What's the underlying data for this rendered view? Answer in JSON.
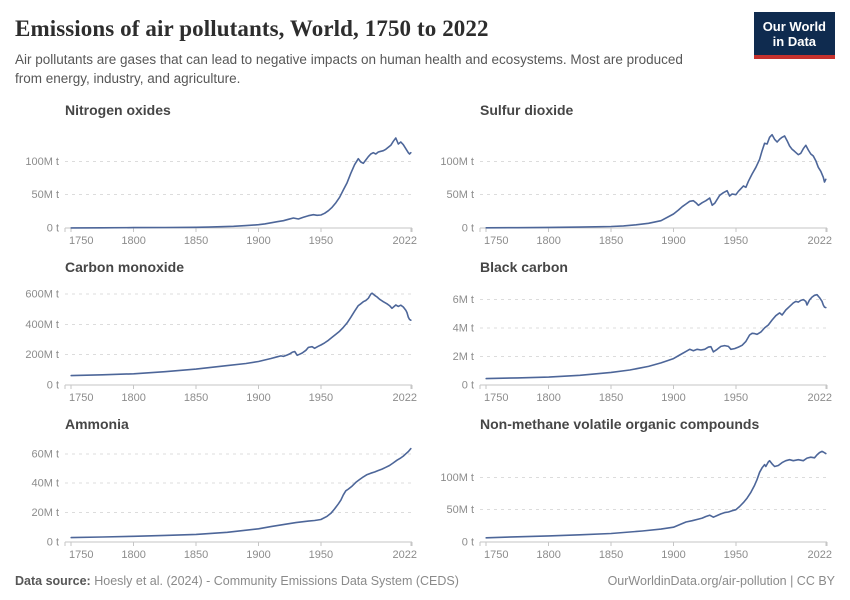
{
  "header": {
    "title": "Emissions of air pollutants, World, 1750 to 2022",
    "subtitle": "Air pollutants are gases that can lead to negative impacts on human health and ecosystems. Most are produced from energy, industry, and agriculture.",
    "logo": {
      "line1": "Our World",
      "line2": "in Data",
      "bg_color": "#0f2b4f",
      "accent_color": "#c5312d"
    }
  },
  "footer": {
    "source_label": "Data source:",
    "source_text": "Hoesly et al. (2024) - Community Emissions Data System (CEDS)",
    "right_text": "OurWorldinData.org/air-pollution | CC BY"
  },
  "style": {
    "line_color": "#4d6699",
    "grid_color": "#dcdcdc",
    "axis_color": "#c6c6c6",
    "tick_text_color": "#8c8c8c"
  },
  "chart_data": [
    {
      "type": "line",
      "title": "Nitrogen oxides",
      "unit": "million tonnes",
      "xlim": [
        1745,
        2023
      ],
      "ylim": [
        0,
        150
      ],
      "xticks": [
        {
          "v": 1750,
          "label": "1750"
        },
        {
          "v": 1800,
          "label": "1800"
        },
        {
          "v": 1850,
          "label": "1850"
        },
        {
          "v": 1900,
          "label": "1900"
        },
        {
          "v": 1950,
          "label": "1950"
        },
        {
          "v": 2022,
          "label": "2022"
        }
      ],
      "yticks": [
        {
          "v": 0,
          "label": "0 t"
        },
        {
          "v": 50,
          "label": "50M t"
        },
        {
          "v": 100,
          "label": "100M t"
        }
      ],
      "x": [
        1750,
        1775,
        1800,
        1825,
        1850,
        1860,
        1870,
        1880,
        1890,
        1900,
        1905,
        1910,
        1915,
        1920,
        1924,
        1928,
        1932,
        1936,
        1940,
        1944,
        1947,
        1950,
        1953,
        1956,
        1959,
        1962,
        1965,
        1968,
        1971,
        1974,
        1977,
        1980,
        1982,
        1984,
        1986,
        1988,
        1990,
        1992,
        1994,
        1996,
        1998,
        2000,
        2002,
        2004,
        2006,
        2008,
        2010,
        2012,
        2014,
        2016,
        2018,
        2020,
        2021,
        2022
      ],
      "values": [
        0.2,
        0.35,
        0.55,
        0.8,
        1.1,
        1.4,
        1.9,
        2.6,
        3.6,
        5,
        6.2,
        7.8,
        9.5,
        11,
        13,
        15,
        13.5,
        16,
        18.5,
        20,
        19,
        19.5,
        22,
        26,
        31,
        38,
        46,
        57,
        68,
        82,
        95,
        104,
        99,
        97,
        102,
        107,
        111,
        113,
        111,
        114,
        115,
        116,
        118,
        121,
        124,
        130,
        135,
        126,
        129,
        125,
        119,
        113,
        111,
        113
      ]
    },
    {
      "type": "line",
      "title": "Sulfur dioxide",
      "unit": "million tonnes",
      "xlim": [
        1745,
        2023
      ],
      "ylim": [
        0,
        150
      ],
      "xticks": [
        {
          "v": 1750,
          "label": "1750"
        },
        {
          "v": 1800,
          "label": "1800"
        },
        {
          "v": 1850,
          "label": "1850"
        },
        {
          "v": 1900,
          "label": "1900"
        },
        {
          "v": 1950,
          "label": "1950"
        },
        {
          "v": 2022,
          "label": "2022"
        }
      ],
      "yticks": [
        {
          "v": 0,
          "label": "0 t"
        },
        {
          "v": 50,
          "label": "50M t"
        },
        {
          "v": 100,
          "label": "100M t"
        }
      ],
      "x": [
        1750,
        1775,
        1800,
        1825,
        1850,
        1860,
        1870,
        1880,
        1890,
        1900,
        1904,
        1907,
        1910,
        1913,
        1916,
        1918,
        1920,
        1923,
        1926,
        1929,
        1931,
        1933,
        1935,
        1937,
        1940,
        1943,
        1945,
        1947,
        1950,
        1952,
        1954,
        1956,
        1958,
        1960,
        1963,
        1966,
        1969,
        1971,
        1973,
        1975,
        1977,
        1979,
        1981,
        1983,
        1985,
        1987,
        1989,
        1991,
        1993,
        1995,
        1997,
        2000,
        2002,
        2004,
        2006,
        2008,
        2010,
        2012,
        2014,
        2016,
        2018,
        2020,
        2021,
        2022
      ],
      "values": [
        0.3,
        0.5,
        0.9,
        1.4,
        2.2,
        3.2,
        4.8,
        7,
        11,
        21,
        27,
        32,
        36,
        40,
        41,
        38,
        34,
        38,
        41,
        45,
        34,
        37,
        43,
        49,
        53,
        56,
        48,
        51,
        50,
        55,
        59,
        63,
        61,
        70,
        81,
        91,
        103,
        116,
        127,
        126,
        136,
        140,
        133,
        129,
        133,
        136,
        138,
        131,
        123,
        118,
        115,
        110,
        112,
        119,
        124,
        117,
        111,
        108,
        101,
        91,
        85,
        76,
        69,
        73
      ]
    },
    {
      "type": "line",
      "title": "Carbon monoxide",
      "unit": "million tonnes",
      "xlim": [
        1745,
        2023
      ],
      "ylim": [
        0,
        660
      ],
      "xticks": [
        {
          "v": 1750,
          "label": "1750"
        },
        {
          "v": 1800,
          "label": "1800"
        },
        {
          "v": 1850,
          "label": "1850"
        },
        {
          "v": 1900,
          "label": "1900"
        },
        {
          "v": 1950,
          "label": "1950"
        },
        {
          "v": 2022,
          "label": "2022"
        }
      ],
      "yticks": [
        {
          "v": 0,
          "label": "0 t"
        },
        {
          "v": 200,
          "label": "200M t"
        },
        {
          "v": 400,
          "label": "400M t"
        },
        {
          "v": 600,
          "label": "600M t"
        }
      ],
      "x": [
        1750,
        1775,
        1800,
        1825,
        1850,
        1875,
        1890,
        1900,
        1905,
        1910,
        1915,
        1918,
        1920,
        1923,
        1925,
        1927,
        1929,
        1931,
        1933,
        1935,
        1938,
        1940,
        1943,
        1945,
        1948,
        1950,
        1953,
        1956,
        1959,
        1962,
        1965,
        1968,
        1971,
        1974,
        1977,
        1980,
        1982,
        1984,
        1986,
        1988,
        1990,
        1991,
        1993,
        1995,
        1997,
        2000,
        2003,
        2005,
        2007,
        2009,
        2010,
        2012,
        2014,
        2016,
        2018,
        2019,
        2020,
        2021,
        2022
      ],
      "values": [
        62,
        67,
        74,
        88,
        105,
        128,
        142,
        155,
        165,
        175,
        186,
        192,
        189,
        198,
        205,
        216,
        221,
        196,
        203,
        211,
        229,
        248,
        253,
        242,
        256,
        264,
        278,
        295,
        315,
        335,
        355,
        380,
        410,
        447,
        487,
        524,
        536,
        550,
        558,
        572,
        600,
        606,
        592,
        581,
        566,
        550,
        536,
        524,
        506,
        521,
        528,
        519,
        527,
        515,
        494,
        478,
        448,
        433,
        428
      ]
    },
    {
      "type": "line",
      "title": "Black carbon",
      "unit": "million tonnes",
      "xlim": [
        1745,
        2023
      ],
      "ylim": [
        0,
        7
      ],
      "xticks": [
        {
          "v": 1750,
          "label": "1750"
        },
        {
          "v": 1800,
          "label": "1800"
        },
        {
          "v": 1850,
          "label": "1850"
        },
        {
          "v": 1900,
          "label": "1900"
        },
        {
          "v": 1950,
          "label": "1950"
        },
        {
          "v": 2022,
          "label": "2022"
        }
      ],
      "yticks": [
        {
          "v": 0,
          "label": "0 t"
        },
        {
          "v": 2,
          "label": "2M t"
        },
        {
          "v": 4,
          "label": "4M t"
        },
        {
          "v": 6,
          "label": "6M t"
        }
      ],
      "x": [
        1750,
        1775,
        1800,
        1825,
        1850,
        1865,
        1880,
        1890,
        1900,
        1905,
        1910,
        1913,
        1916,
        1919,
        1922,
        1925,
        1928,
        1930,
        1932,
        1935,
        1938,
        1941,
        1944,
        1946,
        1949,
        1952,
        1955,
        1958,
        1961,
        1963,
        1965,
        1967,
        1970,
        1973,
        1976,
        1979,
        1982,
        1985,
        1987,
        1990,
        1993,
        1996,
        1998,
        2000,
        2002,
        2004,
        2006,
        2007,
        2009,
        2011,
        2013,
        2015,
        2017,
        2019,
        2020,
        2021,
        2022
      ],
      "values": [
        0.45,
        0.5,
        0.55,
        0.68,
        0.88,
        1.05,
        1.3,
        1.55,
        1.85,
        2.1,
        2.35,
        2.5,
        2.4,
        2.5,
        2.45,
        2.5,
        2.65,
        2.68,
        2.32,
        2.5,
        2.7,
        2.76,
        2.7,
        2.5,
        2.55,
        2.65,
        2.78,
        3.05,
        3.5,
        3.62,
        3.6,
        3.55,
        3.7,
        4.0,
        4.2,
        4.55,
        4.85,
        5.05,
        4.9,
        5.25,
        5.5,
        5.75,
        5.85,
        5.8,
        5.92,
        5.98,
        5.85,
        5.6,
        5.95,
        6.15,
        6.28,
        6.32,
        6.12,
        5.86,
        5.6,
        5.45,
        5.42
      ]
    },
    {
      "type": "line",
      "title": "Ammonia",
      "unit": "million tonnes",
      "xlim": [
        1745,
        2023
      ],
      "ylim": [
        0,
        68
      ],
      "xticks": [
        {
          "v": 1750,
          "label": "1750"
        },
        {
          "v": 1800,
          "label": "1800"
        },
        {
          "v": 1850,
          "label": "1850"
        },
        {
          "v": 1900,
          "label": "1900"
        },
        {
          "v": 1950,
          "label": "1950"
        },
        {
          "v": 2022,
          "label": "2022"
        }
      ],
      "yticks": [
        {
          "v": 0,
          "label": "0 t"
        },
        {
          "v": 20,
          "label": "20M t"
        },
        {
          "v": 40,
          "label": "40M t"
        },
        {
          "v": 60,
          "label": "60M t"
        }
      ],
      "x": [
        1750,
        1775,
        1800,
        1825,
        1850,
        1875,
        1900,
        1910,
        1920,
        1930,
        1940,
        1945,
        1950,
        1955,
        1958,
        1961,
        1964,
        1966,
        1968,
        1970,
        1972,
        1975,
        1978,
        1981,
        1984,
        1987,
        1990,
        1993,
        1996,
        1999,
        2002,
        2005,
        2008,
        2011,
        2014,
        2016,
        2018,
        2020,
        2022
      ],
      "values": [
        3.0,
        3.4,
        3.9,
        4.5,
        5.2,
        6.6,
        9.0,
        10.5,
        11.8,
        13.2,
        14.2,
        14.6,
        15.3,
        17.5,
        19.5,
        22.5,
        26,
        28.5,
        32,
        34.8,
        36,
        38,
        40.5,
        42.5,
        44.3,
        45.8,
        46.8,
        47.6,
        48.6,
        49.6,
        50.8,
        52,
        53.8,
        55.6,
        57.2,
        58.4,
        60,
        61.5,
        63.5
      ]
    },
    {
      "type": "line",
      "title": "Non-methane volatile organic compounds",
      "unit": "million tonnes",
      "xlim": [
        1745,
        2023
      ],
      "ylim": [
        0,
        155
      ],
      "xticks": [
        {
          "v": 1750,
          "label": "1750"
        },
        {
          "v": 1800,
          "label": "1800"
        },
        {
          "v": 1850,
          "label": "1850"
        },
        {
          "v": 1900,
          "label": "1900"
        },
        {
          "v": 1950,
          "label": "1950"
        },
        {
          "v": 2022,
          "label": "2022"
        }
      ],
      "yticks": [
        {
          "v": 0,
          "label": "0 t"
        },
        {
          "v": 50,
          "label": "50M t"
        },
        {
          "v": 100,
          "label": "100M t"
        }
      ],
      "x": [
        1750,
        1775,
        1800,
        1825,
        1850,
        1875,
        1890,
        1900,
        1905,
        1910,
        1915,
        1920,
        1923,
        1926,
        1929,
        1932,
        1935,
        1938,
        1941,
        1944,
        1947,
        1950,
        1953,
        1956,
        1959,
        1962,
        1965,
        1967,
        1969,
        1971,
        1973,
        1974,
        1976,
        1977,
        1979,
        1981,
        1984,
        1987,
        1990,
        1993,
        1996,
        2000,
        2004,
        2007,
        2010,
        2013,
        2015,
        2017,
        2019,
        2020,
        2022
      ],
      "values": [
        6.5,
        8,
        9.5,
        11.2,
        13.2,
        17,
        20,
        23,
        27,
        31,
        33,
        35.5,
        37,
        39.5,
        41.5,
        38.5,
        41,
        43.5,
        45.5,
        46.5,
        48.5,
        50,
        55,
        61,
        68,
        77,
        88,
        97,
        108,
        115,
        120,
        117,
        124,
        126,
        121,
        117,
        118.5,
        123,
        126,
        127.5,
        126,
        127.5,
        126,
        130,
        131.5,
        130.5,
        135,
        138.5,
        140.5,
        139.5,
        137
      ]
    }
  ]
}
